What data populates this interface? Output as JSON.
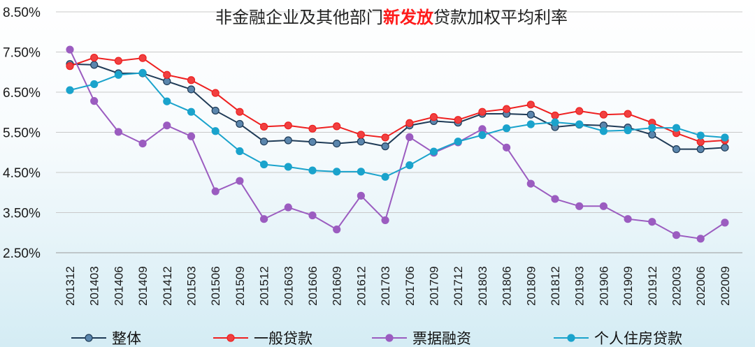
{
  "chart_data": {
    "type": "line",
    "title_parts": [
      {
        "text": "非金融企业及其他部门",
        "emphasis": false
      },
      {
        "text": "新发放",
        "emphasis": true
      },
      {
        "text": "贷款加权平均利率",
        "emphasis": false
      }
    ],
    "categories": [
      "201312",
      "201403",
      "201406",
      "201409",
      "201412",
      "201503",
      "201506",
      "201509",
      "201512",
      "201603",
      "201606",
      "201609",
      "201612",
      "201703",
      "201706",
      "201709",
      "201712",
      "201803",
      "201806",
      "201809",
      "201812",
      "201903",
      "201906",
      "201909",
      "201912",
      "202003",
      "202006",
      "202009"
    ],
    "ylim": [
      2.5,
      8.5
    ],
    "yticks": [
      8.5,
      7.5,
      6.5,
      5.5,
      4.5,
      3.5,
      2.5
    ],
    "ytick_labels": [
      "8.50%",
      "7.50%",
      "6.50%",
      "5.50%",
      "4.50%",
      "3.50%",
      "2.50%"
    ],
    "grid": true,
    "legend_position": "bottom",
    "series": [
      {
        "name": "整体",
        "color": "#1f3b57",
        "fill": "#5b86ad",
        "values": [
          7.2,
          7.18,
          6.97,
          6.97,
          6.77,
          6.57,
          6.04,
          5.71,
          5.27,
          5.3,
          5.26,
          5.22,
          5.27,
          5.15,
          5.67,
          5.78,
          5.74,
          5.96,
          5.96,
          5.94,
          5.63,
          5.69,
          5.67,
          5.62,
          5.44,
          5.08,
          5.08,
          5.12
        ]
      },
      {
        "name": "一般贷款",
        "color": "#ee2020",
        "fill": "#f04040",
        "values": [
          7.15,
          7.36,
          7.28,
          7.35,
          6.93,
          6.8,
          6.48,
          6.01,
          5.64,
          5.67,
          5.59,
          5.65,
          5.44,
          5.37,
          5.73,
          5.88,
          5.81,
          6.01,
          6.08,
          6.19,
          5.92,
          6.03,
          5.94,
          5.96,
          5.74,
          5.48,
          5.26,
          5.3
        ]
      },
      {
        "name": "票据融资",
        "color": "#9b5cc0",
        "fill": "#9b5cc0",
        "values": [
          7.56,
          6.28,
          5.51,
          5.22,
          5.67,
          5.4,
          4.03,
          4.29,
          3.34,
          3.63,
          3.43,
          3.08,
          3.92,
          3.31,
          5.38,
          4.99,
          5.25,
          5.58,
          5.12,
          4.22,
          3.84,
          3.66,
          3.66,
          3.34,
          3.27,
          2.94,
          2.85,
          3.25
        ]
      },
      {
        "name": "个人住房贷款",
        "color": "#1aa3cc",
        "fill": "#1aa3cc",
        "values": [
          6.55,
          6.7,
          6.93,
          6.98,
          6.27,
          6.01,
          5.53,
          5.03,
          4.7,
          4.64,
          4.55,
          4.52,
          4.52,
          4.39,
          4.68,
          5.02,
          5.27,
          5.43,
          5.6,
          5.7,
          5.75,
          5.7,
          5.53,
          5.55,
          5.61,
          5.61,
          5.42,
          5.37
        ]
      }
    ]
  }
}
